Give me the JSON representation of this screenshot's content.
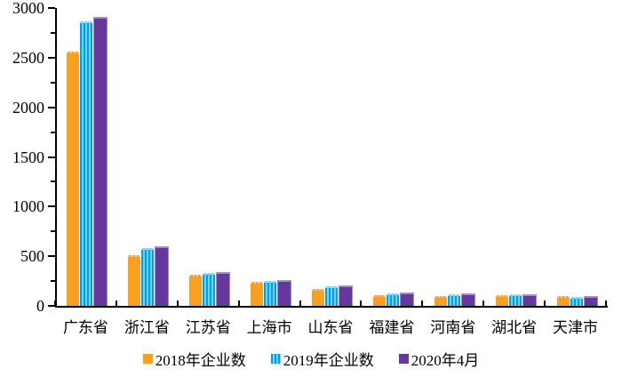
{
  "chart_data": {
    "type": "bar",
    "title": "",
    "xlabel": "",
    "ylabel": "",
    "categories": [
      "广东省",
      "浙江省",
      "江苏省",
      "上海市",
      "山东省",
      "福建省",
      "河南省",
      "湖北省",
      "天津市"
    ],
    "series": [
      {
        "name": "2018年企业数",
        "color": "#F9A11E",
        "values": [
          2545,
          490,
          295,
          228,
          155,
          88,
          80,
          90,
          78
        ]
      },
      {
        "name": "2019年企业数",
        "color": "#29AAE3",
        "values": [
          2845,
          565,
          315,
          232,
          182,
          108,
          95,
          96,
          68
        ]
      },
      {
        "name": "2020年4月",
        "color": "#67389B",
        "values": [
          2895,
          578,
          322,
          243,
          185,
          120,
          105,
          98,
          85
        ]
      }
    ],
    "ylim": [
      0,
      3000
    ],
    "yticks": [
      "0",
      "500",
      "1000",
      "1500",
      "2000",
      "2500",
      "3000"
    ],
    "ytick_major_step": 500,
    "ytick_minor_step": 250,
    "grid": "off",
    "legend_position": "bottom",
    "axis_color": "#000000",
    "background_color": "#ffffff"
  }
}
